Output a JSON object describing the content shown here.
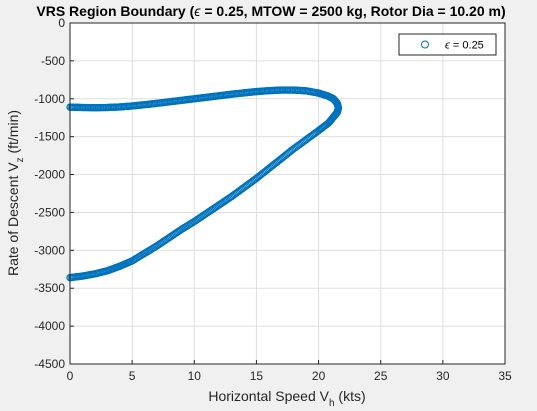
{
  "chart_data": {
    "type": "scatter",
    "title": "VRS Region Boundary (ϵ = 0.25, MTOW = 2500 kg, Rotor Dia = 10.20 m)",
    "title_parts": {
      "before": "VRS Region Boundary (",
      "symbol": "ϵ",
      "after": " = 0.25, MTOW = 2500 kg, Rotor Dia = 10.20 m)"
    },
    "xlabel": {
      "main": "Horizontal Speed V",
      "sub": "h",
      "suffix": " (kts)"
    },
    "ylabel": {
      "main": "Rate of Descent V",
      "sub": "z",
      "suffix": " (ft/min)"
    },
    "xlim": [
      0,
      35
    ],
    "ylim": [
      -4500,
      0
    ],
    "xticks": [
      "0",
      "5",
      "10",
      "15",
      "20",
      "25",
      "30",
      "35"
    ],
    "yticks": [
      "0",
      "-500",
      "-1000",
      "-1500",
      "-2000",
      "-2500",
      "-3000",
      "-3500",
      "-4000",
      "-4500"
    ],
    "grid": true,
    "legend": {
      "position": "top-right",
      "symbol": "ϵ",
      "label": " = 0.25"
    },
    "series_color": "#0072BD",
    "series": [
      {
        "name": "ϵ = 0.25",
        "marker": "circle",
        "x": [
          0,
          1,
          2,
          3,
          4,
          5,
          6,
          7,
          8,
          9,
          10,
          11,
          12,
          13,
          14,
          15,
          16,
          17,
          18,
          19,
          20,
          20.7,
          21.2,
          21.5,
          21.6,
          21.5,
          21.2,
          20.8,
          20,
          19,
          18,
          17,
          16,
          15,
          14,
          13,
          12,
          11,
          10,
          9,
          8,
          7,
          6,
          5,
          4,
          3,
          2,
          1,
          0
        ],
        "y": [
          -1110,
          -1115,
          -1118,
          -1115,
          -1108,
          -1095,
          -1078,
          -1060,
          -1040,
          -1020,
          -1000,
          -980,
          -960,
          -940,
          -922,
          -905,
          -893,
          -885,
          -885,
          -895,
          -925,
          -960,
          -1000,
          -1060,
          -1120,
          -1180,
          -1240,
          -1320,
          -1420,
          -1540,
          -1660,
          -1790,
          -1920,
          -2050,
          -2170,
          -2290,
          -2400,
          -2510,
          -2620,
          -2720,
          -2830,
          -2940,
          -3040,
          -3140,
          -3210,
          -3270,
          -3310,
          -3340,
          -3360
        ]
      }
    ]
  }
}
